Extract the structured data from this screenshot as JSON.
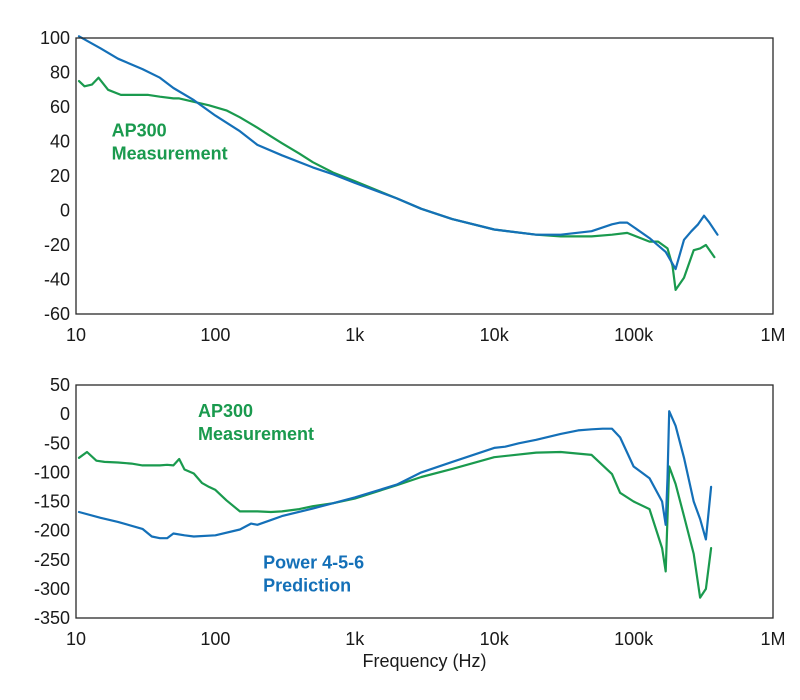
{
  "chart_data": [
    {
      "type": "line",
      "xscale": "log",
      "xlim": [
        10,
        1000000
      ],
      "ylim": [
        -60,
        100
      ],
      "xticks": [
        10,
        100,
        1000,
        10000,
        100000,
        1000000
      ],
      "xtick_labels": [
        "10",
        "100",
        "1k",
        "10k",
        "100k",
        "1M"
      ],
      "yticks": [
        100,
        80,
        60,
        40,
        20,
        0,
        -20,
        -40,
        -60
      ],
      "ytick_labels": [
        "100",
        "80",
        "60",
        "40",
        "20",
        "0",
        "-20",
        "-40",
        "-60"
      ],
      "xlabel": "",
      "grid": false,
      "annotations": [
        {
          "lines": [
            "AP300",
            "Measurement"
          ],
          "color": "#1a9a4e",
          "x": 18,
          "y": 43
        }
      ],
      "series": [
        {
          "color": "#1a9a4e",
          "x": [
            10.5,
            11.5,
            13,
            14.5,
            17,
            21,
            30,
            33,
            40,
            50,
            55,
            70,
            90,
            120,
            150,
            200,
            250,
            300,
            400,
            500,
            700,
            1000,
            2000,
            3000,
            5000,
            10000,
            20000,
            30000,
            50000,
            70000,
            90000,
            130000,
            150000,
            175000,
            190000,
            200000,
            230000,
            270000,
            300000,
            330000,
            380000
          ],
          "y": [
            75,
            72,
            73,
            77,
            70,
            67,
            67,
            67,
            66,
            65,
            65,
            63,
            61,
            58,
            54,
            48,
            43,
            39,
            33,
            28,
            22,
            17,
            7,
            1,
            -5,
            -11,
            -14,
            -15,
            -15,
            -14,
            -13,
            -18,
            -18,
            -22,
            -32,
            -46,
            -39,
            -23,
            -22,
            -20,
            -27
          ]
        },
        {
          "color": "#1470b8",
          "x": [
            10.5,
            15,
            20,
            30,
            40,
            50,
            70,
            100,
            150,
            200,
            300,
            500,
            700,
            1000,
            2000,
            3000,
            5000,
            10000,
            20000,
            30000,
            50000,
            70000,
            80000,
            90000,
            130000,
            170000,
            200000,
            230000,
            260000,
            290000,
            320000,
            350000,
            400000
          ],
          "y": [
            101,
            94,
            88,
            82,
            77,
            71,
            64,
            55,
            46,
            38,
            32,
            25,
            21,
            16,
            7,
            1,
            -5,
            -11,
            -14,
            -14,
            -12,
            -8,
            -7,
            -7,
            -16,
            -24,
            -34,
            -17,
            -12,
            -8,
            -3,
            -7,
            -14
          ]
        }
      ]
    },
    {
      "type": "line",
      "xscale": "log",
      "xlim": [
        10,
        1000000
      ],
      "ylim": [
        -350,
        50
      ],
      "xticks": [
        10,
        100,
        1000,
        10000,
        100000,
        1000000
      ],
      "xtick_labels": [
        "10",
        "100",
        "1k",
        "10k",
        "100k",
        "1M"
      ],
      "yticks": [
        50,
        0,
        -50,
        -100,
        -150,
        -200,
        -250,
        -300,
        -350
      ],
      "ytick_labels": [
        "50",
        "0",
        "-50",
        "-100",
        "-150",
        "-200",
        "-250",
        "-300",
        "-350"
      ],
      "xlabel": "Frequency (Hz)",
      "grid": false,
      "annotations": [
        {
          "lines": [
            "AP300",
            "Measurement"
          ],
          "color": "#1a9a4e",
          "x": 75,
          "y": -5
        },
        {
          "lines": [
            "Power 4-5-6",
            "Prediction"
          ],
          "color": "#1470b8",
          "x": 220,
          "y": -265
        }
      ],
      "series": [
        {
          "color": "#1a9a4e",
          "x": [
            10.5,
            12,
            14,
            16,
            20,
            25,
            30,
            35,
            40,
            45,
            50,
            55,
            60,
            70,
            80,
            90,
            100,
            120,
            150,
            200,
            250,
            300,
            400,
            500,
            700,
            1000,
            2000,
            3000,
            5000,
            10000,
            20000,
            30000,
            50000,
            70000,
            80000,
            100000,
            130000,
            160000,
            170000,
            180000,
            200000,
            230000,
            270000,
            300000,
            330000,
            360000
          ],
          "y": [
            -75,
            -65,
            -80,
            -82,
            -83,
            -85,
            -88,
            -88,
            -88,
            -87,
            -88,
            -77,
            -95,
            -102,
            -118,
            -125,
            -130,
            -148,
            -167,
            -167,
            -168,
            -167,
            -163,
            -158,
            -153,
            -145,
            -122,
            -108,
            -94,
            -74,
            -66,
            -65,
            -70,
            -103,
            -135,
            -150,
            -163,
            -230,
            -270,
            -90,
            -120,
            -175,
            -240,
            -315,
            -300,
            -230
          ]
        },
        {
          "color": "#1470b8",
          "x": [
            10.5,
            15,
            20,
            30,
            35,
            40,
            45,
            50,
            60,
            70,
            100,
            150,
            180,
            200,
            250,
            300,
            500,
            700,
            1000,
            2000,
            3000,
            5000,
            10000,
            12000,
            15000,
            20000,
            30000,
            40000,
            50000,
            60000,
            70000,
            80000,
            100000,
            130000,
            160000,
            170000,
            175000,
            180000,
            200000,
            230000,
            270000,
            300000,
            330000,
            360000
          ],
          "y": [
            -168,
            -178,
            -185,
            -197,
            -210,
            -213,
            -213,
            -205,
            -208,
            -210,
            -208,
            -198,
            -188,
            -190,
            -182,
            -175,
            -162,
            -153,
            -143,
            -121,
            -100,
            -82,
            -58,
            -56,
            -50,
            -44,
            -34,
            -28,
            -26,
            -25,
            -25,
            -40,
            -90,
            -110,
            -150,
            -190,
            -110,
            5,
            -20,
            -75,
            -150,
            -180,
            -215,
            -125
          ]
        }
      ]
    }
  ]
}
